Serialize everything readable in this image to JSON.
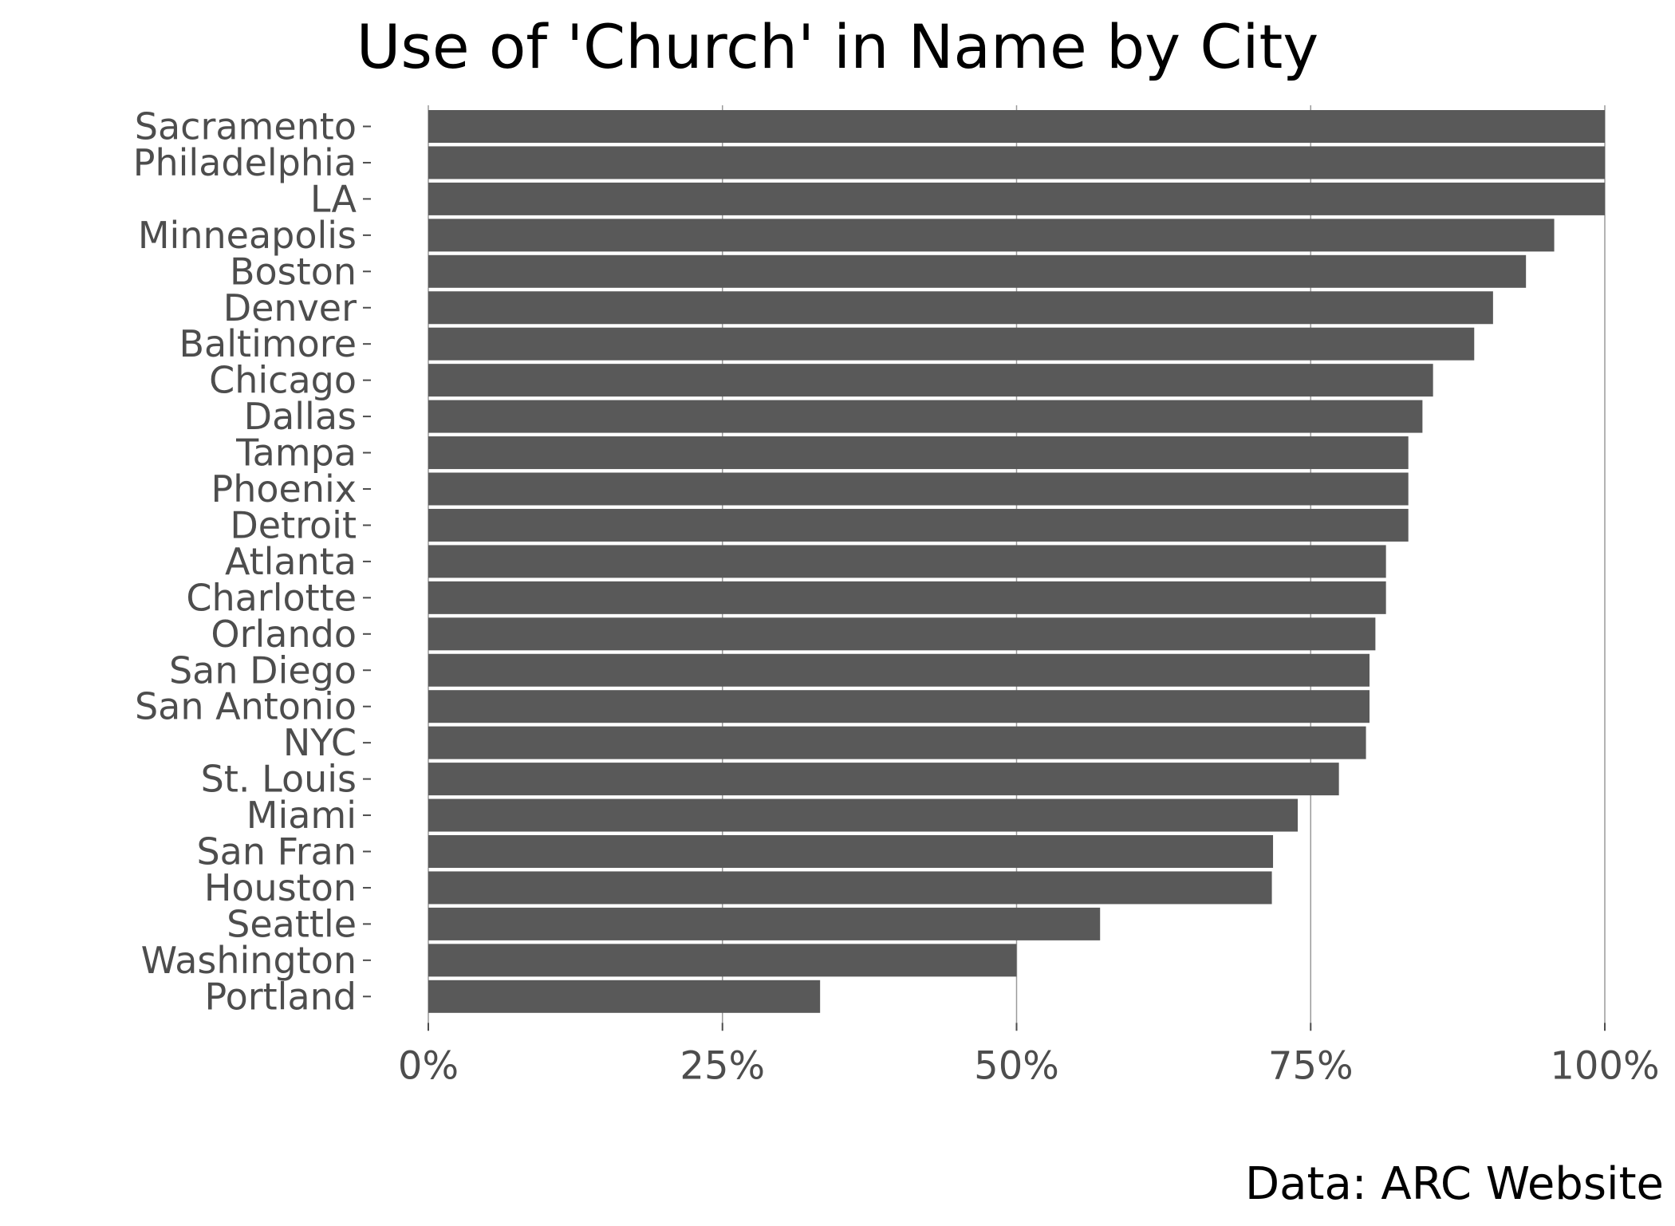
{
  "chart_data": {
    "type": "bar",
    "orientation": "horizontal",
    "title": "Use of 'Church' in Name by City",
    "caption": "Data: ARC Website",
    "xlabel": "",
    "ylabel": "",
    "xlim": [
      0,
      1
    ],
    "x_ticks": [
      0,
      0.25,
      0.5,
      0.75,
      1
    ],
    "x_tick_labels": [
      "0%",
      "25%",
      "50%",
      "75%",
      "100%"
    ],
    "grid": "vertical major lines",
    "legend": "none",
    "bar_color": "#595959",
    "categories": [
      "Sacramento",
      "Philadelphia",
      "LA",
      "Minneapolis",
      "Boston",
      "Denver",
      "Baltimore",
      "Chicago",
      "Dallas",
      "Tampa",
      "Phoenix",
      "Detroit",
      "Atlanta",
      "Charlotte",
      "Orlando",
      "San Diego",
      "San Antonio",
      "NYC",
      "St. Louis",
      "Miami",
      "San Fran",
      "Houston",
      "Seattle",
      "Washington",
      "Portland"
    ],
    "values": [
      1.0,
      1.0,
      1.0,
      0.957,
      0.933,
      0.905,
      0.889,
      0.854,
      0.845,
      0.833,
      0.833,
      0.833,
      0.814,
      0.814,
      0.805,
      0.8,
      0.8,
      0.797,
      0.774,
      0.739,
      0.718,
      0.717,
      0.571,
      0.5,
      0.333
    ]
  }
}
